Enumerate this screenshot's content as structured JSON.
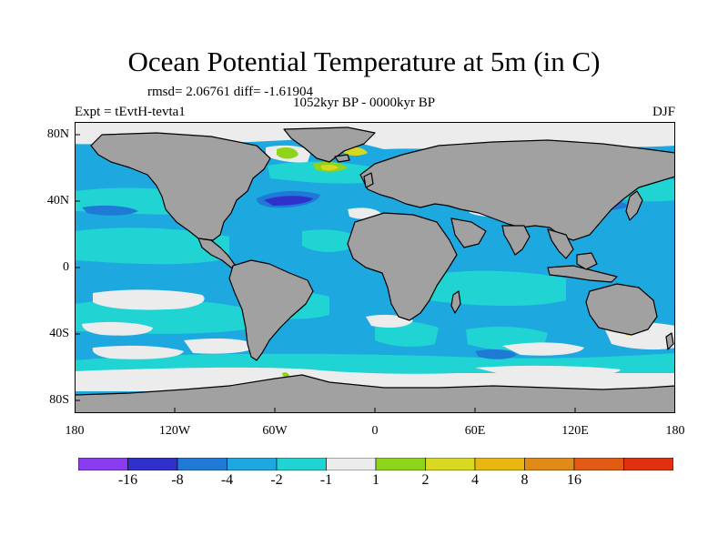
{
  "figure": {
    "title": "Ocean Potential Temperature at 5m (in C)",
    "stats": "rmsd= 2.06761  diff= -1.61904",
    "period": "1052kyr BP - 0000kyr BP",
    "experiment": "Expt = tEvtH-tevta1",
    "season": "DJF"
  },
  "map": {
    "projection": "cylindrical-equidistant",
    "lon_range": [
      -180,
      180
    ],
    "lat_range": [
      -90,
      90
    ],
    "land_color": "#a1a1a1",
    "coast_color": "#000000",
    "lat_labels": [
      "80N",
      "40N",
      "0",
      "40S",
      "80S"
    ],
    "lon_labels": [
      "180",
      "120W",
      "60W",
      "0",
      "60E",
      "120E",
      "180"
    ]
  },
  "colorbar": {
    "colors": [
      "#8a3cf0",
      "#3030cc",
      "#1f7ad6",
      "#1ea8e0",
      "#20d4d4",
      "#ececec",
      "#8ed41a",
      "#d8d820",
      "#e8b810",
      "#e08a18",
      "#e25a14",
      "#e03010"
    ],
    "labels": [
      "-16",
      "-8",
      "-4",
      "-2",
      "-1",
      "1",
      "2",
      "4",
      "8",
      "16"
    ]
  },
  "colors": {
    "ocean_base": "#1ea8e0",
    "warm_anomaly": "#20d4d4",
    "near_zero": "#ececec",
    "strong_cold": "#3030cc",
    "cold": "#1f7ad6",
    "positive_small": "#8ed41a",
    "positive_mid": "#d8d820"
  }
}
